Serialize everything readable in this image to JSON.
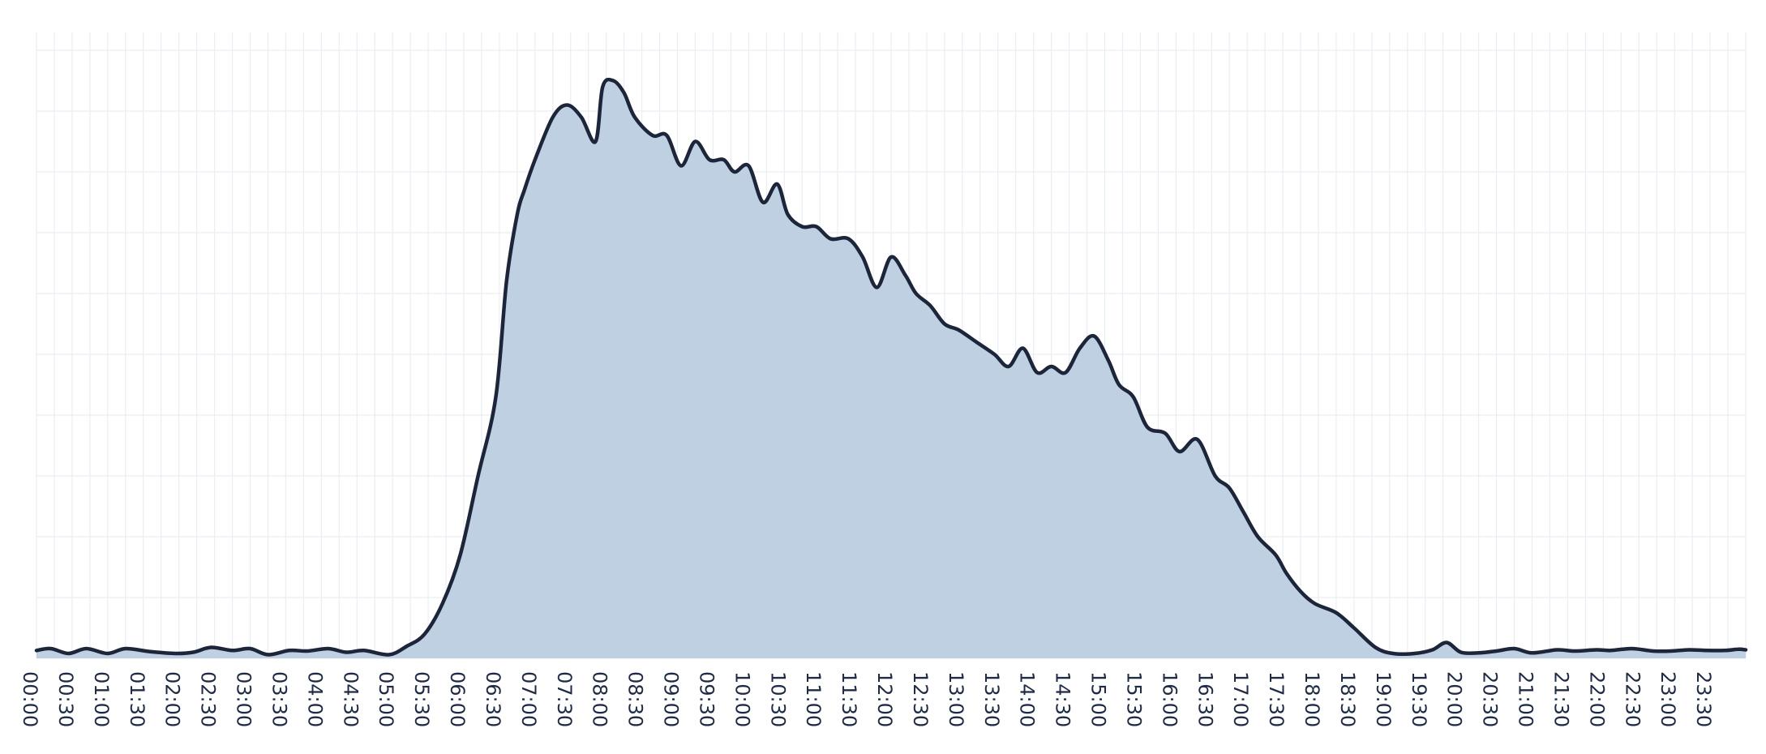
{
  "chart_data": {
    "type": "area",
    "title": "",
    "xlabel": "",
    "ylabel": "",
    "grid": true,
    "legend": "none",
    "colors": {
      "fill": "#bed0e1",
      "line": "#1c2539",
      "grid": "#e9eef4",
      "text": "#1f2a44"
    },
    "x_ticks": [
      "00:00",
      "00:30",
      "01:00",
      "01:30",
      "02:00",
      "02:30",
      "03:00",
      "03:30",
      "04:00",
      "04:30",
      "05:00",
      "05:30",
      "06:00",
      "06:30",
      "07:00",
      "07:30",
      "08:00",
      "08:30",
      "09:00",
      "09:30",
      "10:00",
      "10:30",
      "11:00",
      "11:30",
      "12:00",
      "12:30",
      "13:00",
      "13:30",
      "14:00",
      "14:30",
      "15:00",
      "15:30",
      "16:00",
      "16:30",
      "17:00",
      "17:30",
      "18:00",
      "18:30",
      "19:00",
      "19:30",
      "20:00",
      "20:30",
      "21:00",
      "21:30",
      "22:00",
      "22:30",
      "23:00",
      "23:30"
    ],
    "x_range_hours": [
      0,
      24
    ],
    "ylim": [
      0,
      100
    ],
    "y_gridlines": [
      0,
      10,
      20,
      30,
      40,
      50,
      60,
      70,
      80,
      90,
      100
    ],
    "series": [
      {
        "x_hours": [
          0.0,
          0.2,
          0.45,
          0.7,
          1.0,
          1.25,
          1.6,
          1.95,
          2.2,
          2.45,
          2.75,
          3.0,
          3.25,
          3.55,
          3.8,
          4.1,
          4.35,
          4.6,
          4.95,
          5.2,
          5.45,
          5.7,
          5.95,
          6.2,
          6.45,
          6.6,
          6.75,
          6.85,
          7.0,
          7.25,
          7.45,
          7.65,
          7.85,
          7.95,
          8.1,
          8.25,
          8.4,
          8.65,
          8.85,
          9.05,
          9.25,
          9.45,
          9.65,
          9.8,
          10.0,
          10.2,
          10.4,
          10.55,
          10.75,
          10.95,
          11.15,
          11.4,
          11.6,
          11.8,
          12.0,
          12.2,
          12.35,
          12.55,
          12.75,
          12.95,
          13.2,
          13.45,
          13.65,
          13.85,
          14.05,
          14.25,
          14.45,
          14.65,
          14.85,
          15.05,
          15.2,
          15.4,
          15.6,
          15.85,
          16.05,
          16.3,
          16.55,
          16.75,
          16.95,
          17.15,
          17.4,
          17.55,
          17.75,
          17.95,
          18.25,
          18.5,
          18.8,
          19.05,
          19.35,
          19.6,
          19.8,
          20.0,
          20.25,
          20.5,
          20.75,
          21.0,
          21.35,
          21.6,
          21.9,
          22.1,
          22.4,
          22.7,
          22.95,
          23.2,
          23.45,
          23.7,
          23.9,
          24.0
        ],
        "y": [
          1.3,
          1.6,
          0.8,
          1.6,
          0.8,
          1.6,
          1.1,
          0.8,
          1.0,
          1.8,
          1.3,
          1.6,
          0.6,
          1.3,
          1.2,
          1.6,
          1.0,
          1.3,
          0.6,
          2.0,
          4.0,
          9.0,
          17.0,
          30.0,
          43.0,
          62.0,
          73.0,
          77.0,
          82.0,
          89.0,
          91.0,
          89.0,
          85.0,
          94.0,
          95.0,
          93.0,
          89.0,
          86.0,
          86.0,
          81.0,
          85.0,
          82.0,
          82.0,
          80.0,
          81.0,
          75.0,
          78.0,
          73.0,
          71.0,
          71.0,
          69.0,
          69.0,
          66.0,
          61.0,
          66.0,
          63.0,
          60.0,
          58.0,
          55.0,
          54.0,
          52.0,
          50.0,
          48.0,
          51.0,
          47.0,
          48.0,
          47.0,
          51.0,
          53.0,
          49.0,
          45.0,
          43.0,
          38.0,
          37.0,
          34.0,
          36.0,
          30.0,
          28.0,
          24.0,
          20.0,
          17.0,
          14.0,
          11.0,
          9.0,
          7.5,
          5.0,
          1.8,
          0.8,
          0.8,
          1.4,
          2.6,
          1.0,
          0.9,
          1.2,
          1.6,
          0.9,
          1.4,
          1.2,
          1.4,
          1.3,
          1.6,
          1.2,
          1.2,
          1.4,
          1.3,
          1.3,
          1.5,
          1.4
        ]
      }
    ]
  }
}
